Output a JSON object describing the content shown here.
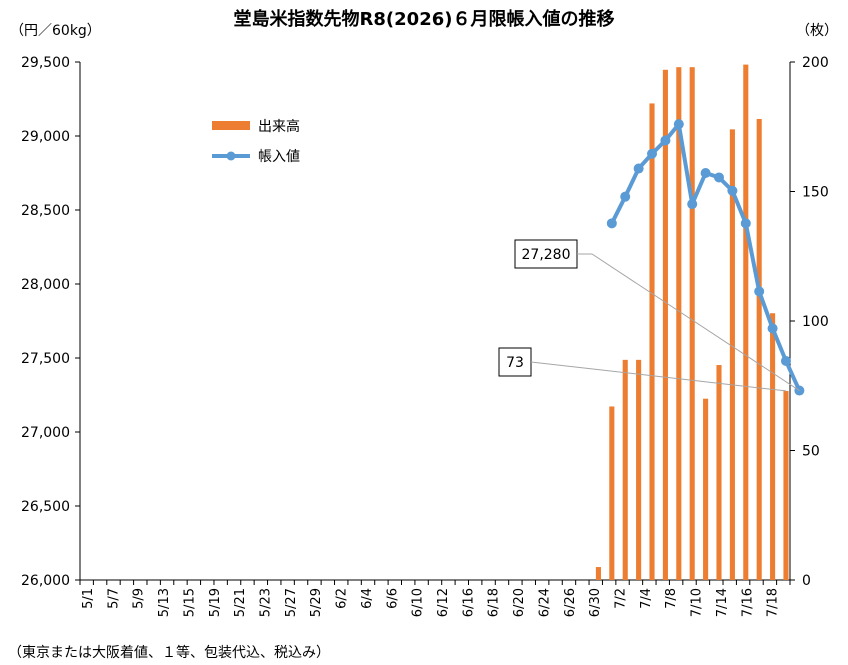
{
  "chart_data": {
    "type": "bar+line",
    "title": "堂島米指数先物R8(2026)６月限帳入値の推移",
    "left_axis_unit": "（円／60kg）",
    "right_axis_unit": "（枚）",
    "footnote": "（東京または大阪着値、１等、包装代込、税込み）",
    "left_axis": {
      "min": 26000,
      "max": 29500,
      "ticks": [
        "26,000",
        "26,500",
        "27,000",
        "27,500",
        "28,000",
        "28,500",
        "29,000",
        "29,500"
      ]
    },
    "right_axis": {
      "min": 0,
      "max": 200,
      "ticks": [
        "0",
        "50",
        "100",
        "150",
        "200"
      ]
    },
    "x_tick_labels": [
      "5/1",
      "5/7",
      "5/9",
      "5/13",
      "5/15",
      "5/19",
      "5/21",
      "5/23",
      "5/27",
      "5/29",
      "6/2",
      "6/4",
      "6/6",
      "6/10",
      "6/12",
      "6/16",
      "6/18",
      "6/20",
      "6/24",
      "6/26",
      "6/30",
      "7/2",
      "7/4",
      "7/8",
      "7/10",
      "7/14",
      "7/16",
      "7/18"
    ],
    "series": [
      {
        "name": "出来高",
        "kind": "bar",
        "axis": "right",
        "color": "#ED7D31",
        "points": [
          {
            "x": "6/30",
            "value": 5
          },
          {
            "x": "7/1",
            "value": 67
          },
          {
            "x": "7/2",
            "value": 85
          },
          {
            "x": "7/3",
            "value": 85
          },
          {
            "x": "7/6",
            "value": 184
          },
          {
            "x": "7/7",
            "value": 197
          },
          {
            "x": "7/8",
            "value": 198
          },
          {
            "x": "7/9",
            "value": 198
          },
          {
            "x": "7/10",
            "value": 70
          },
          {
            "x": "7/13",
            "value": 83
          },
          {
            "x": "7/14",
            "value": 174
          },
          {
            "x": "7/15",
            "value": 199
          },
          {
            "x": "7/16",
            "value": 178
          },
          {
            "x": "7/17",
            "value": 103
          },
          {
            "x": "7/18",
            "value": 73
          }
        ]
      },
      {
        "name": "帳入値",
        "kind": "line",
        "axis": "left",
        "color": "#5B9BD5",
        "points": [
          {
            "x": "7/1",
            "value": 28410
          },
          {
            "x": "7/2",
            "value": 28590
          },
          {
            "x": "7/3",
            "value": 28780
          },
          {
            "x": "7/6",
            "value": 28880
          },
          {
            "x": "7/7",
            "value": 28970
          },
          {
            "x": "7/8",
            "value": 29080
          },
          {
            "x": "7/9",
            "value": 28540
          },
          {
            "x": "7/10",
            "value": 28750
          },
          {
            "x": "7/13",
            "value": 28720
          },
          {
            "x": "7/14",
            "value": 28630
          },
          {
            "x": "7/15",
            "value": 28410
          },
          {
            "x": "7/16",
            "value": 27950
          },
          {
            "x": "7/17",
            "value": 27700
          },
          {
            "x": "7/18",
            "value": 27480
          },
          {
            "x": "7/19",
            "value": 27280
          }
        ]
      }
    ],
    "legend": {
      "placement": "upper-left inside plot",
      "items": [
        "出来高",
        "帳入値"
      ]
    },
    "annotations": [
      {
        "text": "27,280",
        "target": "last 帳入値 point"
      },
      {
        "text": "73",
        "target": "last 出来高 bar"
      }
    ],
    "grid": false
  }
}
